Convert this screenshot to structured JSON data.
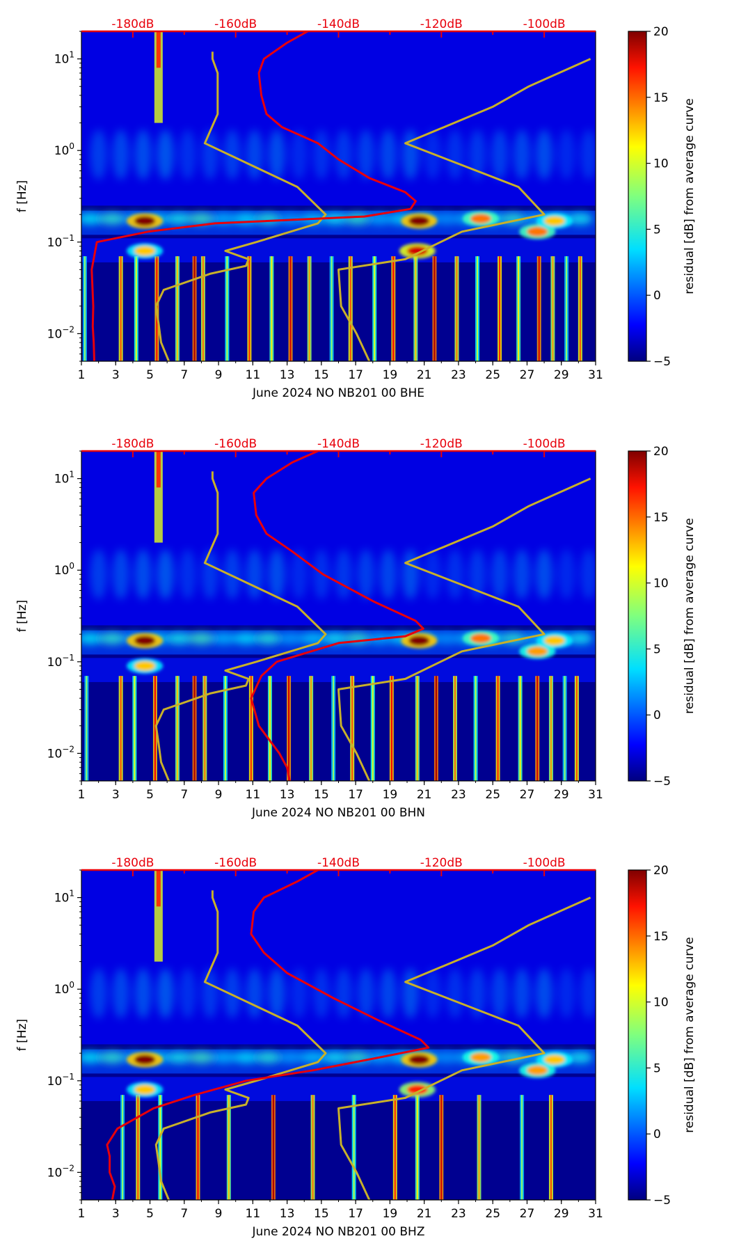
{
  "colors": {
    "db_scale": "#e8000b",
    "nlnm_nhnm": "#c8b02a",
    "psd_curve": "#e8000b",
    "axes": "#000000"
  },
  "colorbar": {
    "label": "residual [dB] from average curve",
    "range": [
      -5,
      20
    ],
    "ticks": [
      "20",
      "15",
      "10",
      "5",
      "0",
      "−5"
    ],
    "colormap": "jet"
  },
  "chart_data": [
    {
      "type": "heatmap",
      "id": "bhe",
      "xlabel": "June 2024 NO NB201 00 BHE",
      "ylabel": "f [Hz]",
      "xlim": [
        1,
        31
      ],
      "ylim_hz": [
        0.005,
        20
      ],
      "yscale": "log",
      "x_ticks": [
        "1",
        "3",
        "5",
        "7",
        "9",
        "11",
        "13",
        "15",
        "17",
        "19",
        "21",
        "23",
        "25",
        "27",
        "29",
        "31"
      ],
      "y_ticks": [
        {
          "base": "10",
          "exp": "1"
        },
        {
          "base": "10",
          "exp": "0"
        },
        {
          "base": "10",
          "exp": "−1"
        },
        {
          "base": "10",
          "exp": "−2"
        }
      ],
      "db_scale_labels": [
        "-180dB",
        "-160dB",
        "-140dB",
        "-120dB",
        "-100dB"
      ],
      "db_scale_range": [
        -190,
        -90
      ],
      "hotspots": [
        {
          "day": 4.7,
          "f": 0.17,
          "level": 20
        },
        {
          "day": 20.7,
          "f": 0.17,
          "level": 20
        },
        {
          "day": 20.6,
          "f": 0.08,
          "level": 18
        },
        {
          "day": 24.3,
          "f": 0.18,
          "level": 14
        },
        {
          "day": 27.6,
          "f": 0.13,
          "level": 14
        },
        {
          "day": 28.6,
          "f": 0.17,
          "level": 12
        },
        {
          "day": 4.7,
          "f": 0.08,
          "level": 12
        }
      ],
      "high_freq_band_days": [
        5.5
      ],
      "low_freq_stripe_days": [
        1.2,
        3.3,
        4.2,
        5.4,
        6.6,
        7.6,
        8.1,
        9.5,
        10.8,
        12.1,
        13.2,
        14.3,
        15.6,
        16.7,
        18.1,
        19.2,
        20.5,
        21.6,
        22.9,
        24.1,
        25.4,
        26.5,
        27.7,
        28.5,
        29.3,
        30.1
      ],
      "psd_curve": {
        "name": "average PSD",
        "points": [
          [
            -187.5,
            0.005
          ],
          [
            -187.6,
            0.008
          ],
          [
            -187.8,
            0.012
          ],
          [
            -187.7,
            0.02
          ],
          [
            -188.0,
            0.05
          ],
          [
            -187.0,
            0.1
          ],
          [
            -177.0,
            0.13
          ],
          [
            -164.0,
            0.16
          ],
          [
            -135.0,
            0.19
          ],
          [
            -126.0,
            0.23
          ],
          [
            -125.0,
            0.28
          ],
          [
            -127.0,
            0.35
          ],
          [
            -134.0,
            0.5
          ],
          [
            -140.0,
            0.8
          ],
          [
            -144.0,
            1.2
          ],
          [
            -151.0,
            1.8
          ],
          [
            -154.0,
            2.5
          ],
          [
            -155.0,
            4
          ],
          [
            -155.5,
            7
          ],
          [
            -154.5,
            10
          ],
          [
            -150.0,
            15
          ],
          [
            -146.0,
            20
          ]
        ]
      },
      "noise_model_curve": {
        "name": "NLNM / NHNM",
        "points": [
          [
            -173.0,
            0.005
          ],
          [
            -174.5,
            0.008
          ],
          [
            -175.0,
            0.013
          ],
          [
            -175.5,
            0.02
          ],
          [
            -174.0,
            0.03
          ],
          [
            -165.0,
            0.045
          ],
          [
            -158.0,
            0.055
          ],
          [
            -157.5,
            0.065
          ],
          [
            -162.0,
            0.08
          ],
          [
            -156.0,
            0.1
          ],
          [
            -144.0,
            0.16
          ],
          [
            -142.5,
            0.2
          ],
          [
            -148.0,
            0.4
          ],
          [
            -166.0,
            1.2
          ],
          [
            -163.5,
            2.5
          ],
          [
            -163.5,
            7
          ],
          [
            -164.5,
            10
          ],
          [
            -164.5,
            12
          ]
        ]
      }
    },
    {
      "type": "heatmap",
      "id": "bhn",
      "xlabel": "June 2024 NO NB201 00 BHN",
      "ylabel": "f [Hz]",
      "xlim": [
        1,
        31
      ],
      "ylim_hz": [
        0.005,
        20
      ],
      "yscale": "log",
      "x_ticks": [
        "1",
        "3",
        "5",
        "7",
        "9",
        "11",
        "13",
        "15",
        "17",
        "19",
        "21",
        "23",
        "25",
        "27",
        "29",
        "31"
      ],
      "y_ticks": [
        {
          "base": "10",
          "exp": "1"
        },
        {
          "base": "10",
          "exp": "0"
        },
        {
          "base": "10",
          "exp": "−1"
        },
        {
          "base": "10",
          "exp": "−2"
        }
      ],
      "db_scale_labels": [
        "-180dB",
        "-160dB",
        "-140dB",
        "-120dB",
        "-100dB"
      ],
      "db_scale_range": [
        -190,
        -90
      ],
      "hotspots": [
        {
          "day": 4.7,
          "f": 0.17,
          "level": 20
        },
        {
          "day": 20.7,
          "f": 0.17,
          "level": 20
        },
        {
          "day": 24.3,
          "f": 0.18,
          "level": 14
        },
        {
          "day": 27.6,
          "f": 0.13,
          "level": 13
        },
        {
          "day": 28.6,
          "f": 0.17,
          "level": 12
        },
        {
          "day": 4.7,
          "f": 0.09,
          "level": 12
        }
      ],
      "high_freq_band_days": [
        5.5
      ],
      "low_freq_stripe_days": [
        1.3,
        3.3,
        4.1,
        5.3,
        6.6,
        7.6,
        8.2,
        9.4,
        10.9,
        12.0,
        13.1,
        14.4,
        15.7,
        16.8,
        18.0,
        19.1,
        20.6,
        21.7,
        22.8,
        24.0,
        25.3,
        26.6,
        27.6,
        28.4,
        29.2,
        29.9
      ],
      "psd_curve": {
        "name": "average PSD",
        "points": [
          [
            -149.5,
            0.005
          ],
          [
            -150.0,
            0.007
          ],
          [
            -151.5,
            0.01
          ],
          [
            -155.5,
            0.02
          ],
          [
            -157.0,
            0.04
          ],
          [
            -155.0,
            0.07
          ],
          [
            -152.0,
            0.1
          ],
          [
            -140.0,
            0.16
          ],
          [
            -127.0,
            0.19
          ],
          [
            -123.5,
            0.23
          ],
          [
            -125.0,
            0.28
          ],
          [
            -133.0,
            0.45
          ],
          [
            -143.0,
            0.9
          ],
          [
            -149.0,
            1.6
          ],
          [
            -154.0,
            2.5
          ],
          [
            -156.0,
            4
          ],
          [
            -156.5,
            7
          ],
          [
            -154.0,
            10
          ],
          [
            -149.0,
            15
          ],
          [
            -144.0,
            20
          ]
        ]
      },
      "noise_model_curve": {
        "name": "NLNM / NHNM",
        "points": [
          [
            -173.0,
            0.005
          ],
          [
            -174.5,
            0.008
          ],
          [
            -175.0,
            0.013
          ],
          [
            -175.5,
            0.02
          ],
          [
            -174.0,
            0.03
          ],
          [
            -165.0,
            0.045
          ],
          [
            -158.0,
            0.055
          ],
          [
            -157.5,
            0.065
          ],
          [
            -162.0,
            0.08
          ],
          [
            -156.0,
            0.1
          ],
          [
            -144.0,
            0.16
          ],
          [
            -142.5,
            0.2
          ],
          [
            -148.0,
            0.4
          ],
          [
            -166.0,
            1.2
          ],
          [
            -163.5,
            2.5
          ],
          [
            -163.5,
            7
          ],
          [
            -164.5,
            10
          ],
          [
            -164.5,
            12
          ]
        ]
      }
    },
    {
      "type": "heatmap",
      "id": "bhz",
      "xlabel": "June 2024 NO NB201 00 BHZ",
      "ylabel": "f [Hz]",
      "xlim": [
        1,
        31
      ],
      "ylim_hz": [
        0.005,
        20
      ],
      "yscale": "log",
      "x_ticks": [
        "1",
        "3",
        "5",
        "7",
        "9",
        "11",
        "13",
        "15",
        "17",
        "19",
        "21",
        "23",
        "25",
        "27",
        "29",
        "31"
      ],
      "y_ticks": [
        {
          "base": "10",
          "exp": "1"
        },
        {
          "base": "10",
          "exp": "0"
        },
        {
          "base": "10",
          "exp": "−1"
        },
        {
          "base": "10",
          "exp": "−2"
        }
      ],
      "db_scale_labels": [
        "-180dB",
        "-160dB",
        "-140dB",
        "-120dB",
        "-100dB"
      ],
      "db_scale_range": [
        -190,
        -90
      ],
      "hotspots": [
        {
          "day": 4.7,
          "f": 0.17,
          "level": 20
        },
        {
          "day": 20.7,
          "f": 0.17,
          "level": 20
        },
        {
          "day": 20.6,
          "f": 0.08,
          "level": 16
        },
        {
          "day": 24.3,
          "f": 0.18,
          "level": 13
        },
        {
          "day": 27.6,
          "f": 0.13,
          "level": 13
        },
        {
          "day": 28.6,
          "f": 0.17,
          "level": 12
        },
        {
          "day": 4.7,
          "f": 0.08,
          "level": 12
        }
      ],
      "high_freq_band_days": [
        5.5
      ],
      "low_freq_stripe_days": [
        3.4,
        4.3,
        5.6,
        7.8,
        9.6,
        12.2,
        14.5,
        16.9,
        19.3,
        20.6,
        22.0,
        24.2,
        26.7,
        28.4
      ],
      "psd_curve": {
        "name": "average PSD",
        "points": [
          [
            -184.0,
            0.005
          ],
          [
            -183.5,
            0.007
          ],
          [
            -184.5,
            0.01
          ],
          [
            -184.5,
            0.015
          ],
          [
            -185.0,
            0.02
          ],
          [
            -183.0,
            0.03
          ],
          [
            -176.0,
            0.05
          ],
          [
            -168.0,
            0.07
          ],
          [
            -158.0,
            0.1
          ],
          [
            -145.0,
            0.13
          ],
          [
            -132.0,
            0.18
          ],
          [
            -122.5,
            0.23
          ],
          [
            -124.0,
            0.28
          ],
          [
            -132.0,
            0.45
          ],
          [
            -141.0,
            0.8
          ],
          [
            -150.0,
            1.5
          ],
          [
            -154.5,
            2.5
          ],
          [
            -157.0,
            4
          ],
          [
            -156.5,
            7
          ],
          [
            -154.5,
            10
          ],
          [
            -148.0,
            15
          ],
          [
            -144.0,
            20
          ]
        ]
      },
      "noise_model_curve": {
        "name": "NLNM / NHNM",
        "points": [
          [
            -173.0,
            0.005
          ],
          [
            -174.5,
            0.008
          ],
          [
            -175.0,
            0.013
          ],
          [
            -175.5,
            0.02
          ],
          [
            -174.0,
            0.03
          ],
          [
            -165.0,
            0.045
          ],
          [
            -158.0,
            0.055
          ],
          [
            -157.5,
            0.065
          ],
          [
            -162.0,
            0.08
          ],
          [
            -156.0,
            0.1
          ],
          [
            -144.0,
            0.16
          ],
          [
            -142.5,
            0.2
          ],
          [
            -148.0,
            0.4
          ],
          [
            -166.0,
            1.2
          ],
          [
            -163.5,
            2.5
          ],
          [
            -163.5,
            7
          ],
          [
            -164.5,
            10
          ],
          [
            -164.5,
            12
          ]
        ]
      }
    }
  ],
  "nhnm_curve": {
    "name": "NHNM",
    "points": [
      [
        -134.0,
        0.005
      ],
      [
        -136.5,
        0.01
      ],
      [
        -139.5,
        0.02
      ],
      [
        -140.0,
        0.05
      ],
      [
        -127.0,
        0.065
      ],
      [
        -116.0,
        0.13
      ],
      [
        -100.0,
        0.2
      ],
      [
        -105.0,
        0.4
      ],
      [
        -127.0,
        1.2
      ],
      [
        -110.0,
        3
      ],
      [
        -103.0,
        5
      ],
      [
        -91.0,
        10
      ]
    ]
  }
}
